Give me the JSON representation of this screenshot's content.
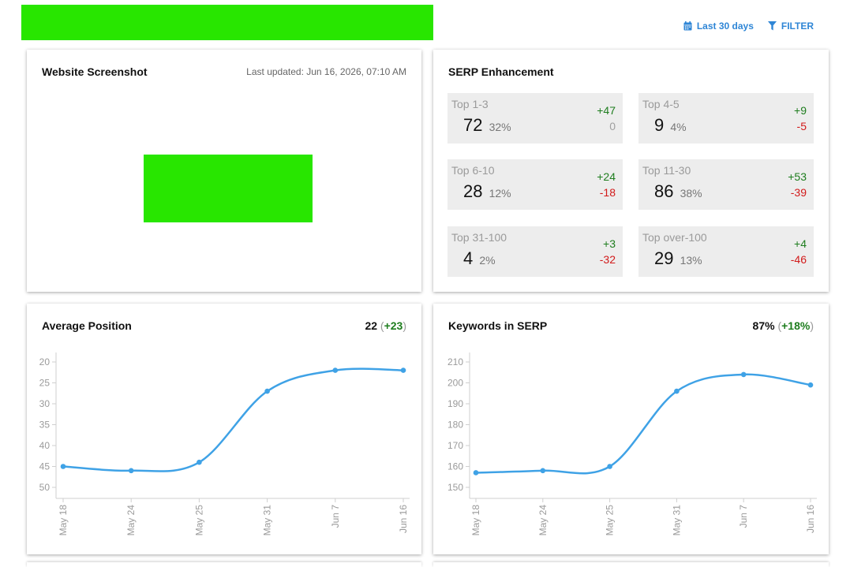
{
  "toolbar": {
    "date_range_label": "Last 30 days",
    "filter_label": "FILTER",
    "accent_color": "#2f86d6"
  },
  "screenshot_card": {
    "title": "Website Screenshot",
    "last_updated": "Last updated: Jun 16, 2026, 07:10 AM"
  },
  "serp_card": {
    "title": "SERP Enhancement",
    "tiles": [
      {
        "label": "Top 1-3",
        "value": "72",
        "pct": "32%",
        "up": "+47",
        "down": "0"
      },
      {
        "label": "Top 4-5",
        "value": "9",
        "pct": "4%",
        "up": "+9",
        "down": "-5"
      },
      {
        "label": "Top 6-10",
        "value": "28",
        "pct": "12%",
        "up": "+24",
        "down": "-18"
      },
      {
        "label": "Top 11-30",
        "value": "86",
        "pct": "38%",
        "up": "+53",
        "down": "-39"
      },
      {
        "label": "Top 31-100",
        "value": "4",
        "pct": "2%",
        "up": "+3",
        "down": "-32"
      },
      {
        "label": "Top over-100",
        "value": "29",
        "pct": "13%",
        "up": "+4",
        "down": "-46"
      }
    ]
  },
  "avg_card": {
    "title": "Average Position",
    "metric_value": "22",
    "metric_delta": "+23",
    "metric_open": "(",
    "metric_close": ")"
  },
  "kw_card": {
    "title": "Keywords in SERP",
    "metric_value": "87%",
    "metric_delta": "+18%",
    "metric_open": "(",
    "metric_close": ")"
  },
  "chart_data": [
    {
      "type": "line",
      "categories": [
        "May 18",
        "May 24",
        "May 25",
        "May 31",
        "Jun 7",
        "Jun 16"
      ],
      "values": [
        45,
        46,
        44,
        27,
        22,
        22
      ],
      "y_ticks": [
        "20",
        "25",
        "30",
        "35",
        "40",
        "45",
        "50"
      ],
      "ylim": [
        20,
        50
      ],
      "y_reversed": true,
      "line_color": "#3fa2e6",
      "grid": false
    },
    {
      "type": "line",
      "categories": [
        "May 18",
        "May 24",
        "May 25",
        "May 31",
        "Jun 7",
        "Jun 16"
      ],
      "values": [
        157,
        158,
        160,
        196,
        204,
        199
      ],
      "y_ticks": [
        "210",
        "200",
        "190",
        "180",
        "170",
        "160",
        "150"
      ],
      "ylim": [
        150,
        210
      ],
      "y_reversed": false,
      "line_color": "#3fa2e6",
      "grid": false
    }
  ]
}
